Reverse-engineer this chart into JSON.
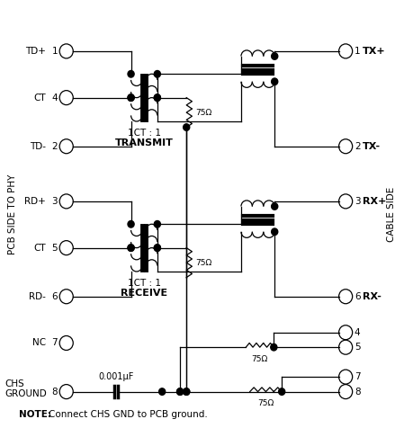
{
  "background_color": "#ffffff",
  "fig_width": 4.49,
  "fig_height": 4.76,
  "note_text": "NOTE:  Connect CHS GND to PCB ground.",
  "pcb_side_label": "PCB SIDE TO PHY",
  "cable_side_label": "CABLE SIDE",
  "resistor_label": "75Ω",
  "cap_label": "0.001μF",
  "transmit_label_1": "1CT : 1",
  "transmit_label_2": "TRANSMIT",
  "receive_label_1": "1CT : 1",
  "receive_label_2": "RECEIVE",
  "lw": 0.9,
  "coil_r": 0.014,
  "n_coils": 4,
  "bar_lw": 3.5,
  "dot_r": 0.008,
  "pin_r": 0.017
}
